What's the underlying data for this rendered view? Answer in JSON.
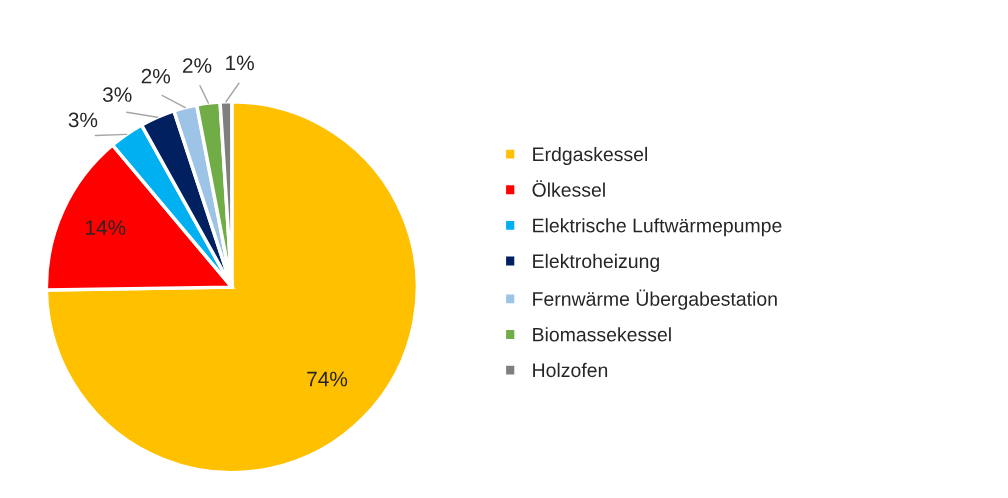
{
  "chart_data": {
    "type": "pie",
    "categories": [
      "Erdgaskessel",
      "Ölkessel",
      "Elektrische Luftwärmepumpe",
      "Elektroheizung",
      "Fernwärme Übergabestation",
      "Biomassekessel",
      "Holzofen"
    ],
    "values": [
      74,
      14,
      3,
      3,
      2,
      2,
      1
    ],
    "colors": [
      "#ffc000",
      "#ff0000",
      "#00b0f0",
      "#002060",
      "#9dc3e6",
      "#70ad47",
      "#7f7f7f"
    ],
    "value_labels": [
      "74%",
      "14%",
      "3%",
      "3%",
      "2%",
      "2%",
      "1%"
    ],
    "legend": "right"
  }
}
